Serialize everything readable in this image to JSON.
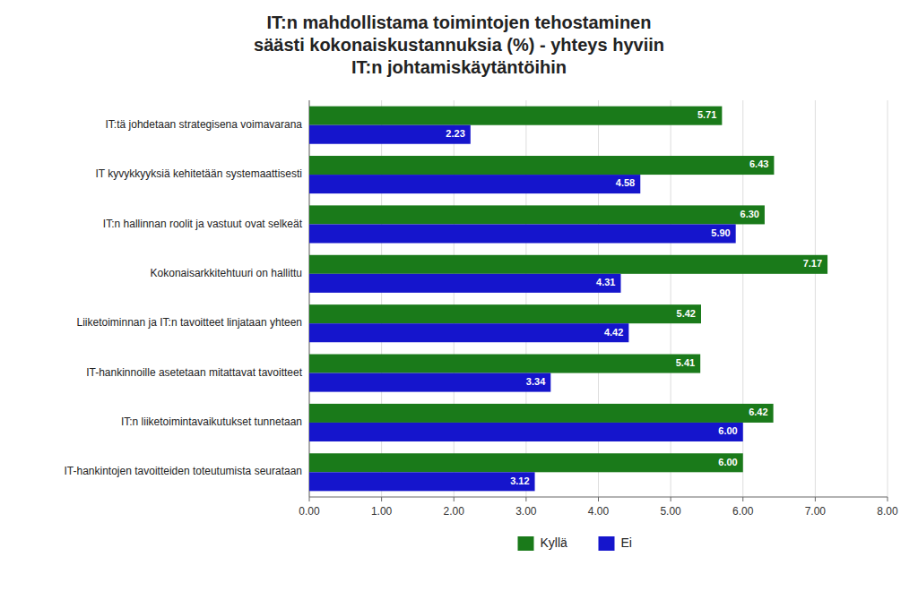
{
  "chart_data": {
    "type": "bar",
    "orientation": "horizontal",
    "title": "IT:n mahdollistama toimintojen tehostaminen\nsäästi kokonaiskustannuksia (%) - yhteys hyviin\nIT:n johtamiskäytäntöihin",
    "categories": [
      "IT:tä johdetaan strategisena voimavarana",
      "IT kyvykkyyksiä kehitetään systemaattisesti",
      "IT:n hallinnan roolit ja vastuut ovat selkeät",
      "Kokonaisarkkitehtuuri on hallittu",
      "Liiketoiminnan ja IT:n tavoitteet linjataan yhteen",
      "IT-hankinnoille asetetaan mitattavat tavoitteet",
      "IT:n liiketoimintavaikutukset tunnetaan",
      "IT-hankintojen tavoitteiden toteutumista seurataan"
    ],
    "series": [
      {
        "name": "Kyllä",
        "color": "#1a7a1a",
        "values": [
          5.71,
          6.43,
          6.3,
          7.17,
          5.42,
          5.41,
          6.42,
          6.0
        ],
        "value_labels": [
          "5.71",
          "6.43",
          "6.30",
          "7.17",
          "5.42",
          "5.41",
          "6.42",
          "6.00"
        ]
      },
      {
        "name": "Ei",
        "color": "#1515cc",
        "values": [
          2.23,
          4.58,
          5.9,
          4.31,
          4.42,
          3.34,
          6.0,
          3.12
        ],
        "value_labels": [
          "2.23",
          "4.58",
          "5.90",
          "4.31",
          "4.42",
          "3.34",
          "6.00",
          "3.12"
        ]
      }
    ],
    "xlim": [
      0,
      8.0
    ],
    "xticks": [
      {
        "value": 0.0,
        "label": "0.00"
      },
      {
        "value": 1.0,
        "label": "1.00"
      },
      {
        "value": 2.0,
        "label": "2.00"
      },
      {
        "value": 3.0,
        "label": "3.00"
      },
      {
        "value": 4.0,
        "label": "4.00"
      },
      {
        "value": 5.0,
        "label": "5.00"
      },
      {
        "value": 6.0,
        "label": "6.00"
      },
      {
        "value": 7.0,
        "label": "7.00"
      },
      {
        "value": 8.0,
        "label": "8.00"
      }
    ],
    "grid": true,
    "legend": "bottom",
    "data_labels": true
  }
}
